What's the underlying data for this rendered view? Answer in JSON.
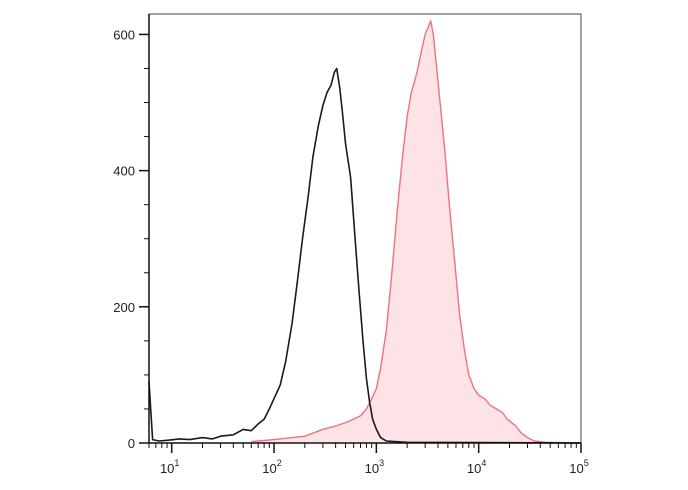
{
  "chart_data": {
    "type": "area",
    "title": "",
    "xlabel": "",
    "ylabel": "",
    "x_scale": "log",
    "xlim": [
      6,
      100000
    ],
    "ylim": [
      0,
      630
    ],
    "grid": false,
    "y_ticks": [
      {
        "value": 0,
        "label": "0"
      },
      {
        "value": 200,
        "label": "200"
      },
      {
        "value": 400,
        "label": "400"
      },
      {
        "value": 600,
        "label": "600"
      }
    ],
    "x_ticks": [
      {
        "value": 10,
        "base": "10",
        "exp": "1"
      },
      {
        "value": 100,
        "base": "10",
        "exp": "2"
      },
      {
        "value": 1000,
        "base": "10",
        "exp": "3"
      },
      {
        "value": 10000,
        "base": "10",
        "exp": "4"
      },
      {
        "value": 100000,
        "base": "10",
        "exp": "5"
      }
    ],
    "series": [
      {
        "style": "line",
        "color": "#1a1a1a",
        "points": [
          [
            6,
            90
          ],
          [
            6.5,
            5
          ],
          [
            7.5,
            3
          ],
          [
            9,
            4
          ],
          [
            12,
            6
          ],
          [
            15,
            5
          ],
          [
            20,
            8
          ],
          [
            25,
            6
          ],
          [
            30,
            10
          ],
          [
            40,
            12
          ],
          [
            50,
            20
          ],
          [
            60,
            18
          ],
          [
            70,
            28
          ],
          [
            80,
            35
          ],
          [
            90,
            50
          ],
          [
            100,
            65
          ],
          [
            115,
            85
          ],
          [
            130,
            120
          ],
          [
            150,
            175
          ],
          [
            170,
            240
          ],
          [
            190,
            300
          ],
          [
            215,
            360
          ],
          [
            240,
            420
          ],
          [
            270,
            465
          ],
          [
            300,
            495
          ],
          [
            330,
            515
          ],
          [
            360,
            525
          ],
          [
            390,
            545
          ],
          [
            410,
            550
          ],
          [
            440,
            520
          ],
          [
            470,
            480
          ],
          [
            500,
            440
          ],
          [
            560,
            390
          ],
          [
            620,
            300
          ],
          [
            680,
            220
          ],
          [
            740,
            150
          ],
          [
            800,
            95
          ],
          [
            860,
            60
          ],
          [
            920,
            35
          ],
          [
            1000,
            20
          ],
          [
            1100,
            8
          ],
          [
            1250,
            3
          ],
          [
            1500,
            2
          ],
          [
            2000,
            1
          ],
          [
            100000,
            0
          ]
        ]
      },
      {
        "style": "filled",
        "color": "#f0707e",
        "fill": "#fde3e5",
        "points": [
          [
            60,
            2
          ],
          [
            100,
            5
          ],
          [
            200,
            10
          ],
          [
            300,
            20
          ],
          [
            400,
            25
          ],
          [
            500,
            30
          ],
          [
            600,
            35
          ],
          [
            700,
            40
          ],
          [
            800,
            50
          ],
          [
            900,
            65
          ],
          [
            1000,
            80
          ],
          [
            1100,
            110
          ],
          [
            1250,
            165
          ],
          [
            1400,
            240
          ],
          [
            1600,
            340
          ],
          [
            1800,
            420
          ],
          [
            2000,
            480
          ],
          [
            2200,
            515
          ],
          [
            2500,
            545
          ],
          [
            2800,
            580
          ],
          [
            3000,
            600
          ],
          [
            3200,
            610
          ],
          [
            3400,
            620
          ],
          [
            3600,
            600
          ],
          [
            3800,
            565
          ],
          [
            4200,
            500
          ],
          [
            4700,
            425
          ],
          [
            5200,
            345
          ],
          [
            5800,
            270
          ],
          [
            6500,
            190
          ],
          [
            7200,
            140
          ],
          [
            8000,
            100
          ],
          [
            9000,
            80
          ],
          [
            10000,
            70
          ],
          [
            11500,
            65
          ],
          [
            13000,
            55
          ],
          [
            15000,
            50
          ],
          [
            17000,
            45
          ],
          [
            19000,
            35
          ],
          [
            21000,
            30
          ],
          [
            23000,
            25
          ],
          [
            26000,
            15
          ],
          [
            30000,
            8
          ],
          [
            35000,
            3
          ],
          [
            45000,
            1
          ],
          [
            100000,
            0
          ]
        ]
      }
    ]
  }
}
